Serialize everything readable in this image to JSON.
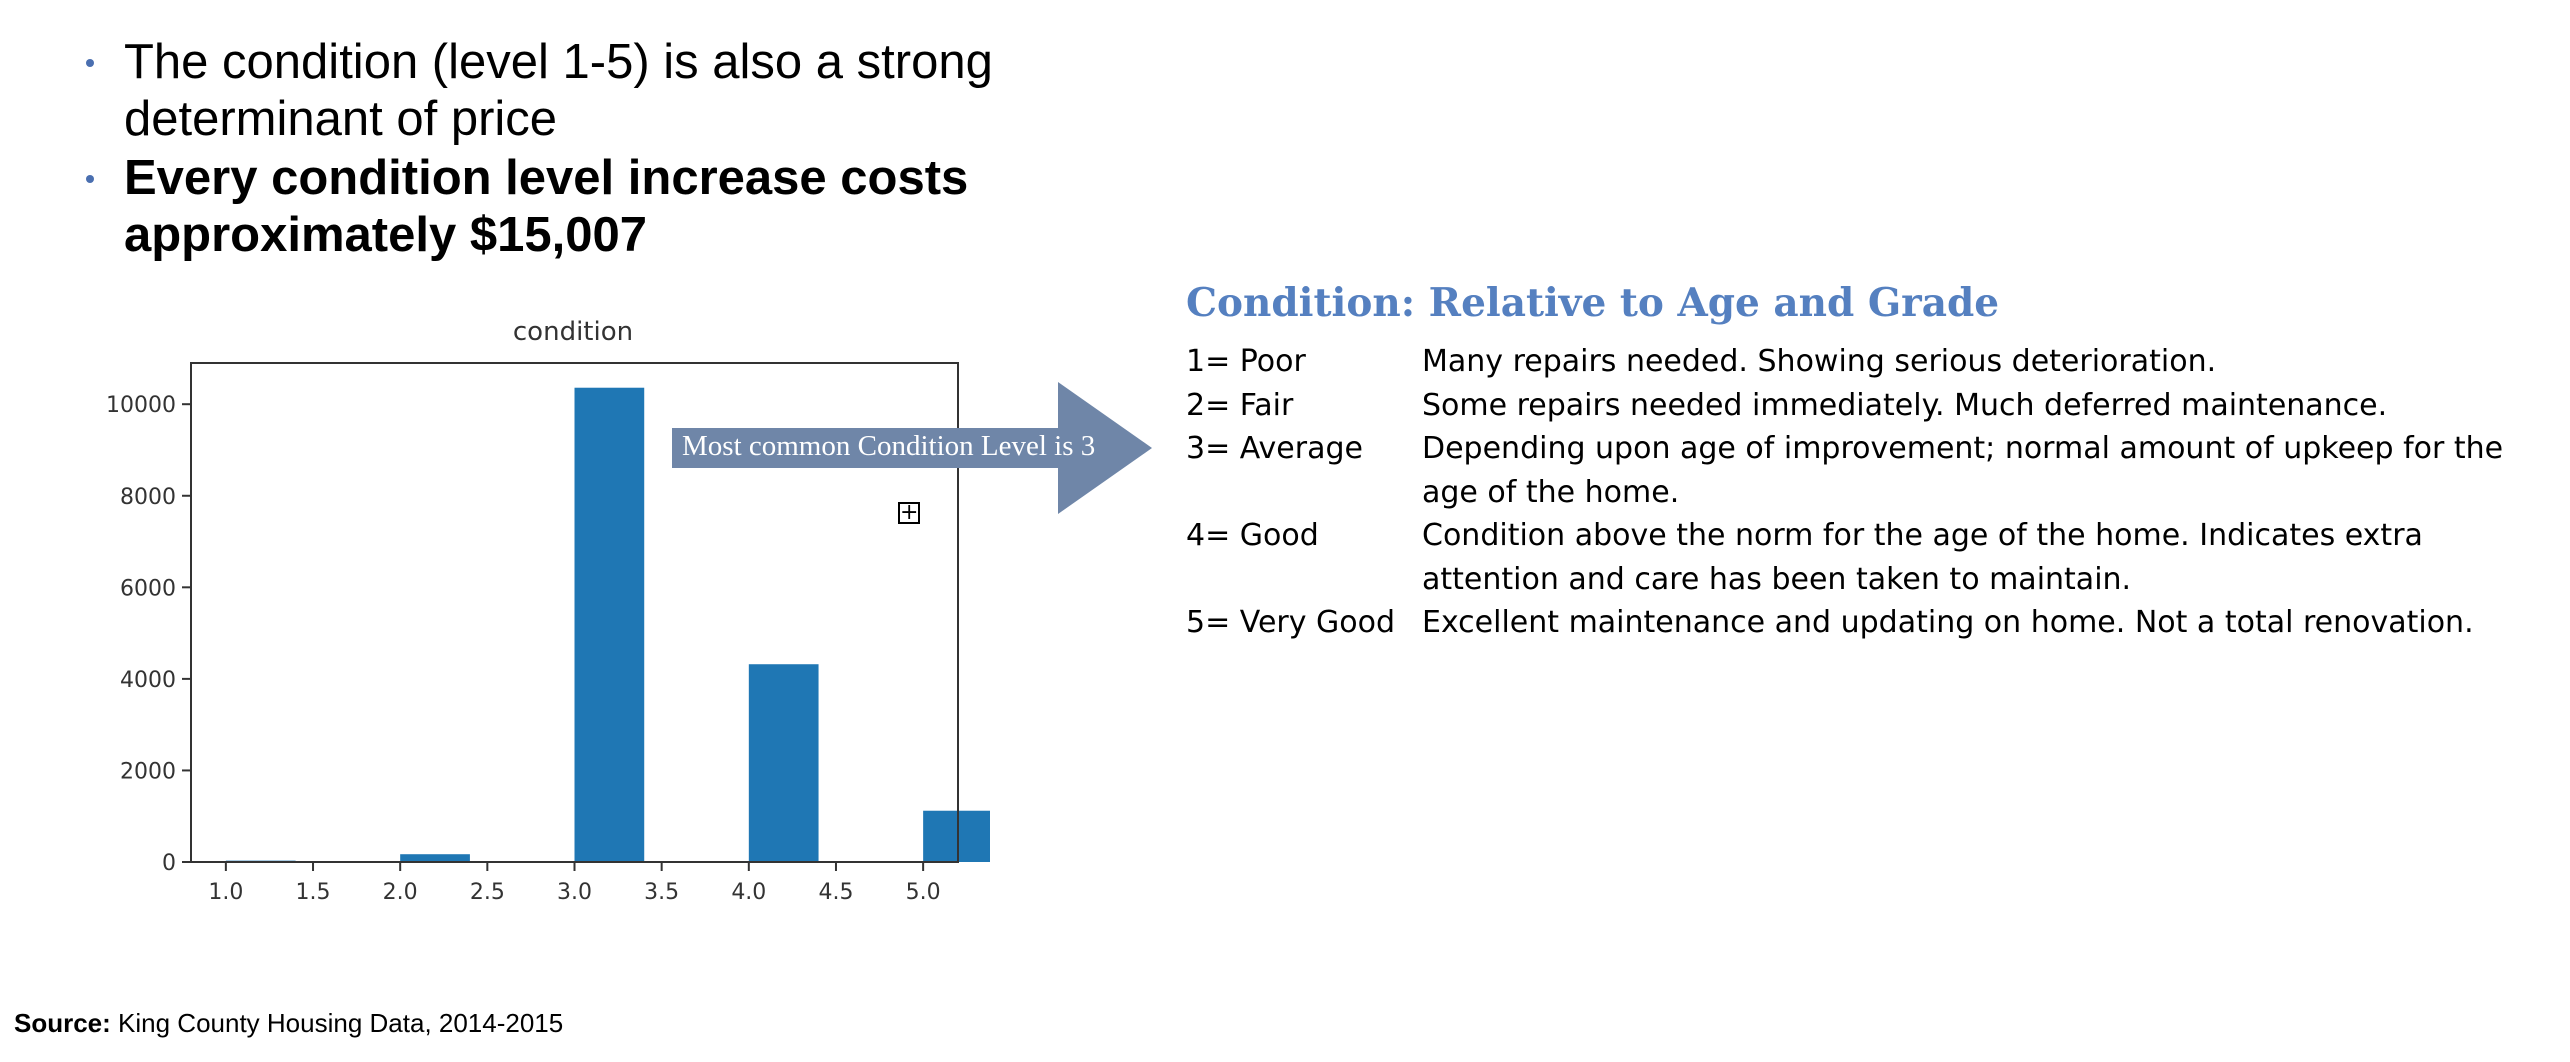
{
  "bullets": [
    {
      "text": "The condition (level 1-5) is also a strong determinant of price"
    },
    {
      "text": "Every condition level increase costs approximately $15,007"
    }
  ],
  "chart_data": {
    "type": "bar",
    "title": "condition",
    "xlabel": "",
    "ylabel": "",
    "x": [
      1.0,
      2.0,
      3.0,
      4.0,
      5.0
    ],
    "values": [
      30,
      170,
      10360,
      4320,
      1120
    ],
    "bar_width": 0.4,
    "xlim": [
      0.8,
      5.2
    ],
    "ylim": [
      0,
      10900
    ],
    "xticks": [
      "1.0",
      "1.5",
      "2.0",
      "2.5",
      "3.0",
      "3.5",
      "4.0",
      "4.5",
      "5.0"
    ],
    "yticks": [
      "0",
      "2000",
      "4000",
      "6000",
      "8000",
      "10000"
    ],
    "color": "#1f77b4",
    "grid": false
  },
  "annotation": {
    "text": "Most common Condition Level is 3",
    "color": "#6f86a8"
  },
  "condition_table": {
    "title": "Condition: Relative to Age and Grade",
    "rows": [
      {
        "level": "1= Poor",
        "desc": "Many repairs needed. Showing serious deterioration."
      },
      {
        "level": "2= Fair",
        "desc": "Some repairs needed immediately. Much deferred maintenance."
      },
      {
        "level": "3= Average",
        "desc": "Depending upon age of improvement; normal amount of upkeep for the age of the home."
      },
      {
        "level": "4= Good",
        "desc": "Condition above the norm for the age of the home. Indicates extra attention and care has been taken to maintain."
      },
      {
        "level": "5= Very Good",
        "desc": "Excellent maintenance and updating on home. Not a total renovation."
      }
    ]
  },
  "source": {
    "label": "Source:",
    "text": " King County Housing Data, 2014-2015"
  },
  "icons": {
    "expand": "expand-icon"
  }
}
